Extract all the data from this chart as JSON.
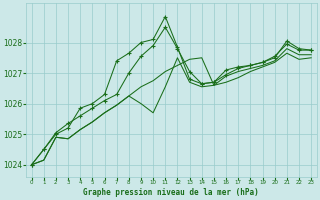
{
  "title": "Graphe pression niveau de la mer (hPa)",
  "background_color": "#cce8e8",
  "grid_color": "#99cccc",
  "line_color": "#1a6e1a",
  "xlim": [
    -0.5,
    23.5
  ],
  "ylim": [
    1023.6,
    1029.3
  ],
  "yticks": [
    1024,
    1025,
    1026,
    1027,
    1028
  ],
  "hours": [
    0,
    1,
    2,
    3,
    4,
    5,
    6,
    7,
    8,
    9,
    10,
    11,
    12,
    13,
    14,
    15,
    16,
    17,
    18,
    19,
    20,
    21,
    22,
    23
  ],
  "series_with_markers": [
    [
      1024.0,
      1024.5,
      1025.0,
      1025.2,
      1025.85,
      1026.0,
      1026.3,
      1027.4,
      1027.65,
      1028.0,
      1028.1,
      1028.85,
      1027.85,
      1026.8,
      1026.65,
      1026.7,
      1027.1,
      1027.2,
      1027.25,
      1027.35,
      1027.5,
      1028.05,
      1027.8,
      1027.75
    ],
    [
      1024.0,
      1024.5,
      1025.05,
      1025.35,
      1025.6,
      1025.85,
      1026.1,
      1026.3,
      1027.0,
      1027.55,
      1027.9,
      1028.5,
      1027.8,
      1027.05,
      1026.65,
      1026.7,
      1026.95,
      1027.15,
      1027.25,
      1027.35,
      1027.55,
      1027.95,
      1027.75,
      1027.75
    ]
  ],
  "series_no_markers": [
    [
      1024.0,
      1024.15,
      1024.9,
      1024.85,
      1025.15,
      1025.4,
      1025.7,
      1025.95,
      1026.25,
      1026.55,
      1026.75,
      1027.05,
      1027.25,
      1027.45,
      1027.5,
      1026.6,
      1026.7,
      1026.85,
      1027.05,
      1027.2,
      1027.35,
      1027.65,
      1027.45,
      1027.5
    ],
    [
      1024.0,
      1024.15,
      1024.9,
      1024.85,
      1025.15,
      1025.4,
      1025.7,
      1025.95,
      1026.25,
      1026.0,
      1025.7,
      1026.55,
      1027.5,
      1026.7,
      1026.55,
      1026.6,
      1026.9,
      1027.05,
      1027.15,
      1027.25,
      1027.4,
      1027.8,
      1027.6,
      1027.6
    ]
  ]
}
